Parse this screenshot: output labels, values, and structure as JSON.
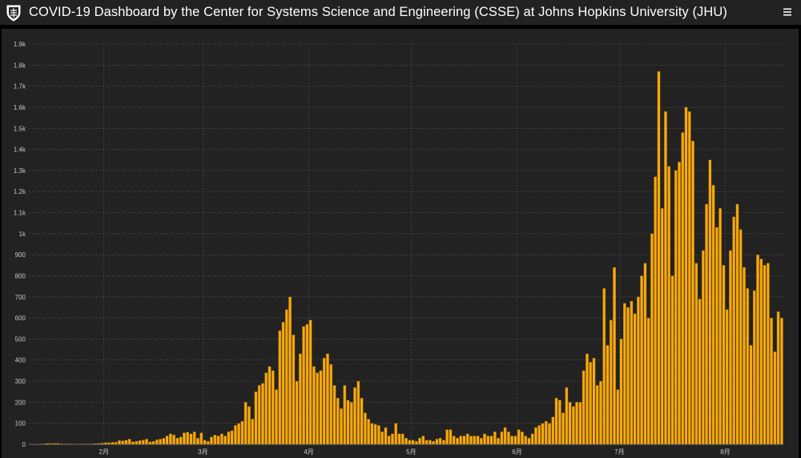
{
  "header": {
    "title": "COVID-19 Dashboard by the Center for Systems Science and Engineering (CSSE) at Johns Hopkins University (JHU)",
    "logo_icon": "jhu-shield-icon",
    "menu_icon": "hamburger-menu-icon"
  },
  "colors": {
    "background": "#000000",
    "panel": "#222222",
    "bar": "#f7a90d",
    "bar_outline": "#8a5a00",
    "grid": "#555555",
    "text": "#ffffff"
  },
  "chart_data": {
    "type": "bar",
    "grid": true,
    "ylim": [
      0,
      1900
    ],
    "y_ticks": [
      "0",
      "100",
      "200",
      "300",
      "400",
      "500",
      "600",
      "700",
      "800",
      "900",
      "1k",
      "1.1k",
      "1.2k",
      "1.3k",
      "1.4k",
      "1.5k",
      "1.6k",
      "1.7k",
      "1.8k",
      "1.9k"
    ],
    "x_ticks": [
      {
        "label": "2月",
        "index": 22
      },
      {
        "label": "3月",
        "index": 51
      },
      {
        "label": "4月",
        "index": 82
      },
      {
        "label": "5月",
        "index": 112
      },
      {
        "label": "6月",
        "index": 143
      },
      {
        "label": "7月",
        "index": 173
      },
      {
        "label": "8月",
        "index": 204
      }
    ],
    "values": [
      1,
      1,
      1,
      2,
      3,
      5,
      4,
      5,
      5,
      3,
      2,
      2,
      2,
      2,
      1,
      2,
      2,
      2,
      3,
      4,
      5,
      6,
      8,
      8,
      10,
      10,
      18,
      17,
      20,
      25,
      12,
      15,
      18,
      20,
      25,
      12,
      15,
      22,
      25,
      30,
      40,
      50,
      45,
      30,
      35,
      55,
      58,
      50,
      60,
      30,
      55,
      20,
      15,
      35,
      45,
      40,
      50,
      40,
      60,
      65,
      90,
      100,
      110,
      200,
      180,
      120,
      250,
      280,
      290,
      340,
      370,
      350,
      260,
      540,
      580,
      640,
      700,
      520,
      300,
      430,
      560,
      570,
      590,
      370,
      340,
      350,
      410,
      430,
      380,
      280,
      220,
      170,
      280,
      210,
      200,
      270,
      300,
      220,
      150,
      120,
      100,
      95,
      90,
      60,
      80,
      40,
      50,
      100,
      50,
      50,
      30,
      20,
      20,
      15,
      30,
      40,
      20,
      20,
      15,
      25,
      30,
      20,
      70,
      70,
      40,
      30,
      40,
      40,
      50,
      40,
      40,
      40,
      30,
      50,
      40,
      40,
      60,
      30,
      60,
      80,
      60,
      40,
      40,
      70,
      60,
      40,
      30,
      50,
      80,
      90,
      100,
      110,
      100,
      130,
      220,
      210,
      150,
      270,
      200,
      180,
      200,
      200,
      350,
      430,
      390,
      410,
      280,
      300,
      740,
      470,
      590,
      840,
      260,
      500,
      670,
      650,
      680,
      620,
      700,
      800,
      860,
      600,
      1000,
      1270,
      1770,
      1120,
      1580,
      1320,
      800,
      1300,
      1340,
      1480,
      1600,
      1580,
      1440,
      860,
      690,
      920,
      1140,
      1350,
      1230,
      1030,
      1120,
      850,
      640,
      920,
      1080,
      1140,
      1020,
      840,
      740,
      470,
      730,
      900,
      880,
      850,
      860,
      600,
      440,
      630,
      600
    ]
  }
}
